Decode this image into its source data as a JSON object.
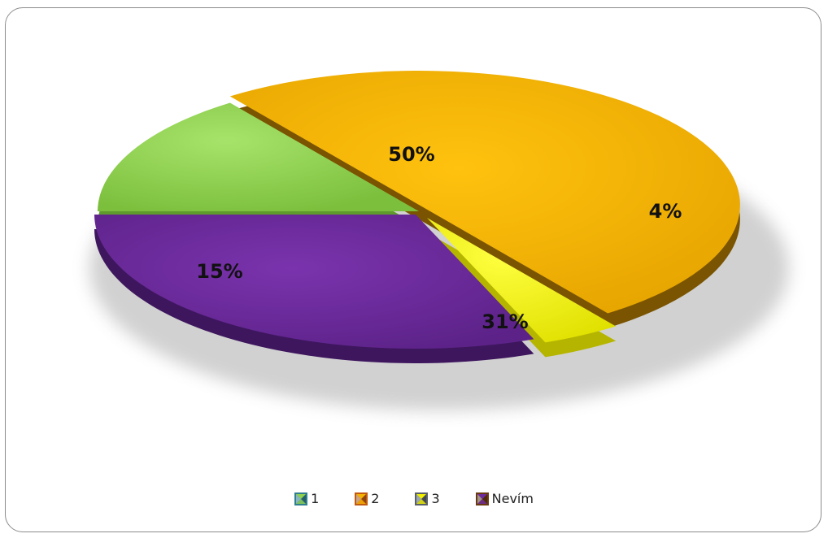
{
  "chart_data": {
    "type": "pie",
    "title": "",
    "labels": [
      "1",
      "2",
      "3",
      "Nevím"
    ],
    "values": [
      15,
      50,
      4,
      31
    ],
    "data_labels": [
      "15%",
      "50%",
      "4%",
      "31%"
    ],
    "colors": [
      "#8fd14f",
      "#f6b200",
      "#f0f000",
      "#6e2b9e"
    ],
    "legend_swatch_colors": [
      "#2f7f8f",
      "#c05a10",
      "#5a6068",
      "#6a3a10"
    ],
    "legend_position": "bottom",
    "style": "3d-exploded"
  }
}
